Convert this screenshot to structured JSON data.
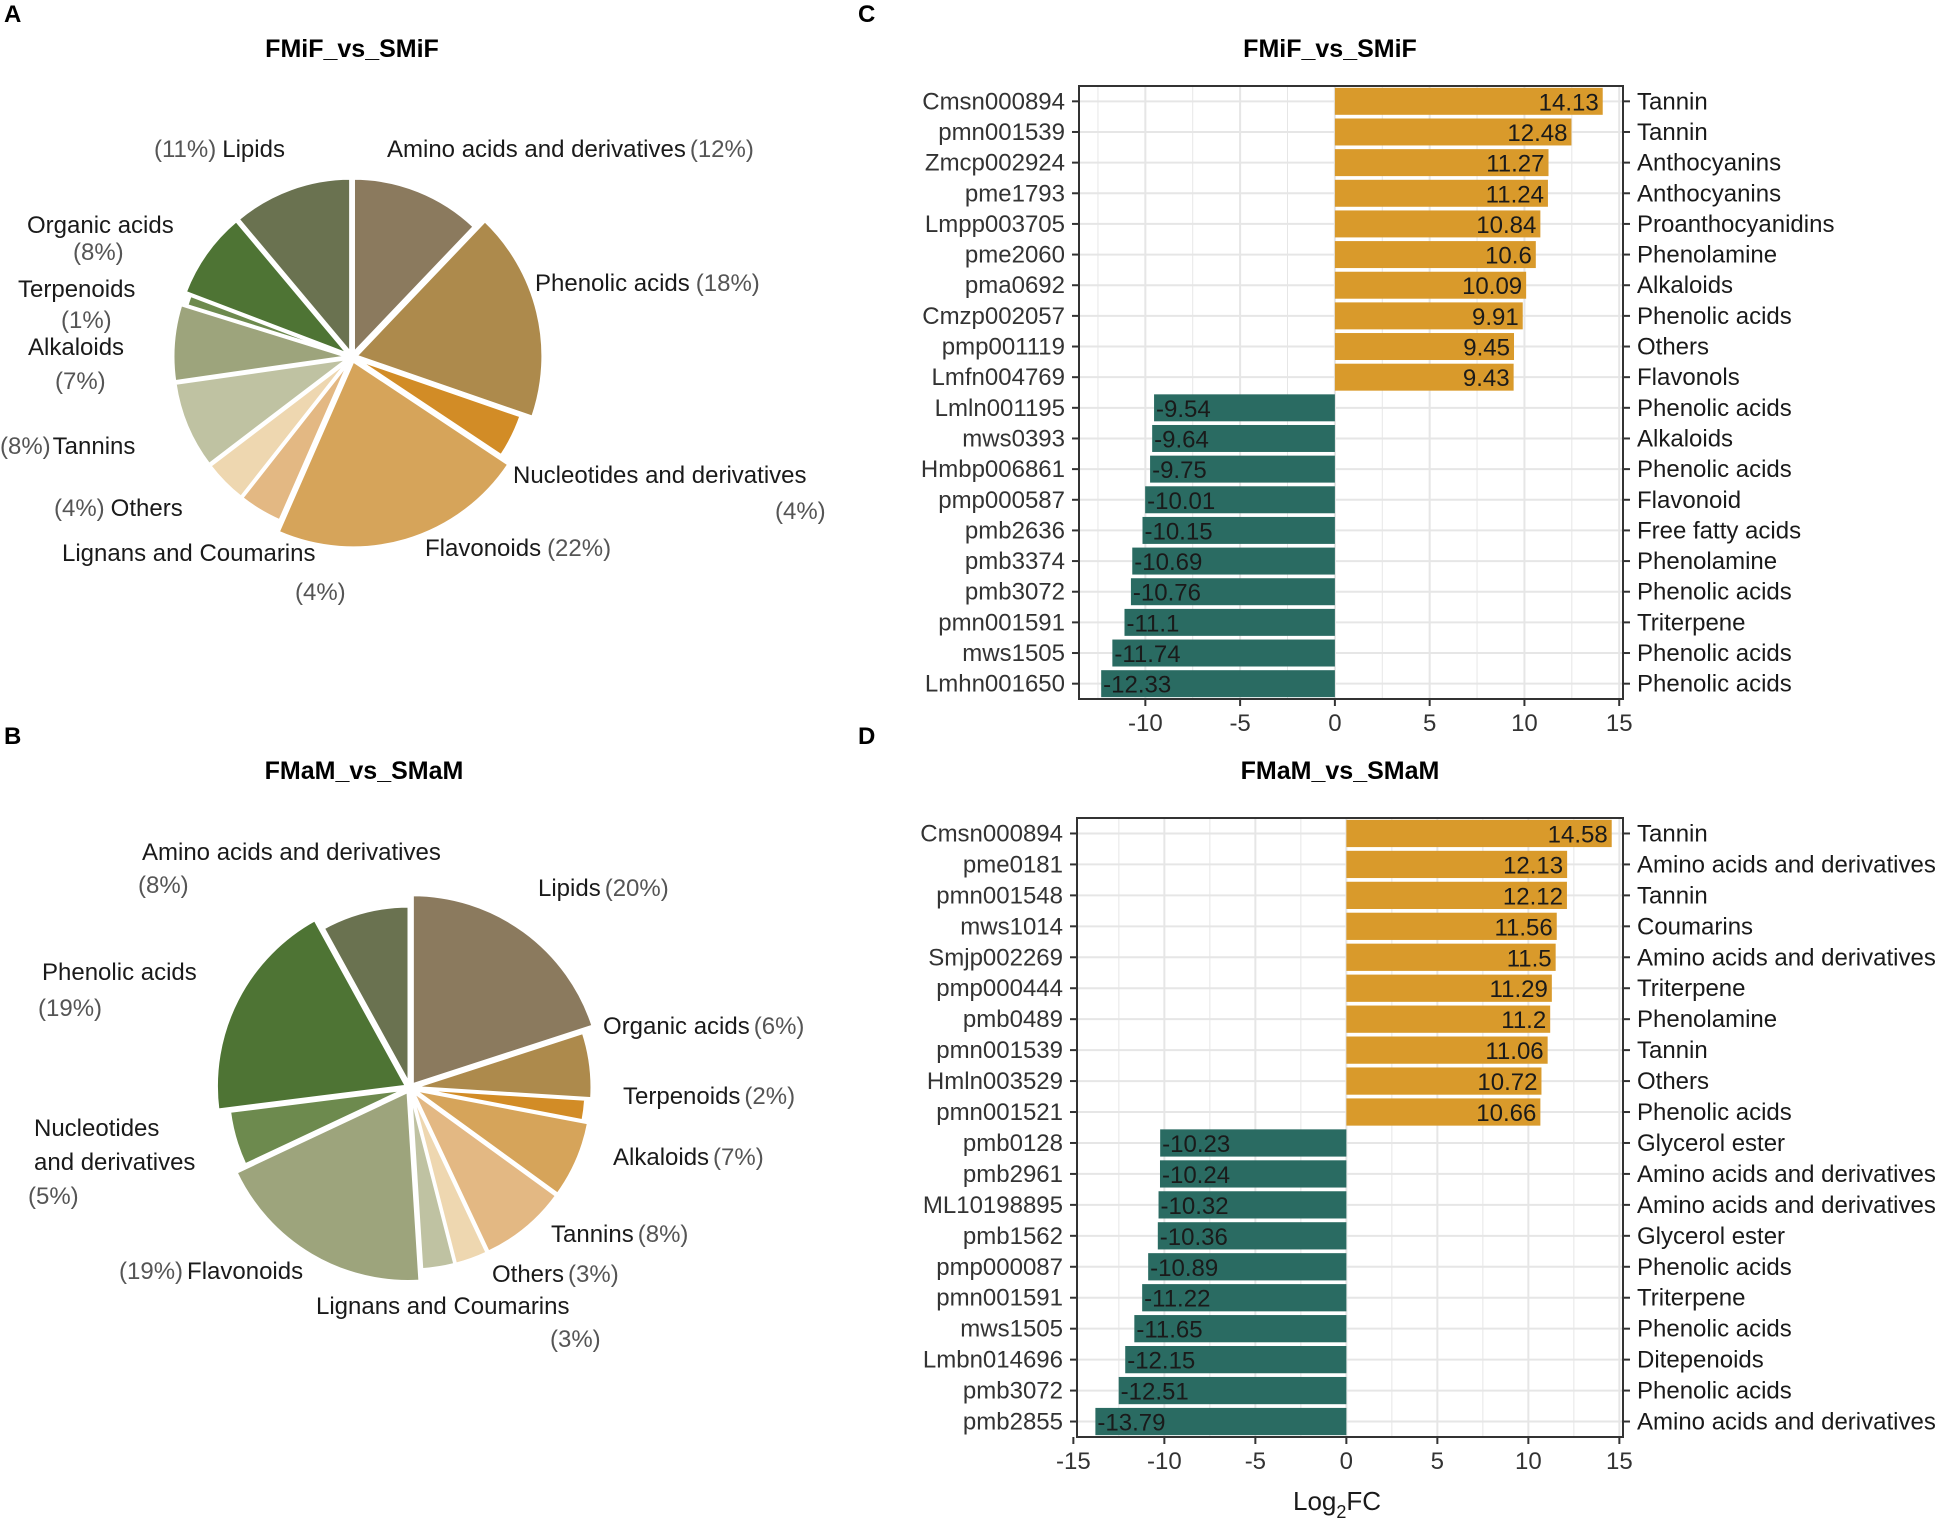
{
  "colors": {
    "up": "#D99A2B",
    "down": "#2A6B62",
    "grid": "#e6e6e6",
    "frame": "#333333"
  },
  "chart_data": [
    {
      "panel": "A",
      "type": "pie",
      "title": "FMiF_vs_SMiF",
      "slices": [
        {
          "name": "Amino acids and derivatives",
          "percent": 12,
          "label": "Amino acids and derivatives",
          "pct_label": "(12%)",
          "color": "#8B7A5E"
        },
        {
          "name": "Phenolic acids",
          "percent": 18,
          "label": "Phenolic acids",
          "pct_label": "(18%)",
          "color": "#AD8A4C"
        },
        {
          "name": "Nucleotides and derivatives",
          "percent": 4,
          "label": "Nucleotides and derivatives",
          "pct_label": "(4%)",
          "color": "#D28C26"
        },
        {
          "name": "Flavonoids",
          "percent": 22,
          "label": "Flavonoids",
          "pct_label": "(22%)",
          "color": "#D6A45A"
        },
        {
          "name": "Lignans and Coumarins",
          "percent": 4,
          "label": "Lignans and Coumarins",
          "pct_label": "(4%)",
          "color": "#E3B883"
        },
        {
          "name": "Others",
          "percent": 4,
          "label": "Others",
          "pct_label": "(4%)",
          "color": "#EED7B0"
        },
        {
          "name": "Tannins",
          "percent": 8,
          "label": "Tannins",
          "pct_label": "(8%)",
          "color": "#BFC2A2"
        },
        {
          "name": "Alkaloids",
          "percent": 7,
          "label": "Alkaloids",
          "pct_label": "(7%)",
          "color": "#9DA47C"
        },
        {
          "name": "Terpenoids",
          "percent": 1,
          "label": "Terpenoids",
          "pct_label": "(1%)",
          "color": "#6D8A4E"
        },
        {
          "name": "Organic acids",
          "percent": 8,
          "label": "Organic acids",
          "pct_label": "(8%)",
          "color": "#4E7434"
        },
        {
          "name": "Lipids",
          "percent": 11,
          "label": "Lipids",
          "pct_label": "(11%)",
          "color": "#6A7250"
        }
      ]
    },
    {
      "panel": "B",
      "type": "pie",
      "title": "FMaM_vs_SMaM",
      "slices": [
        {
          "name": "Lipids",
          "percent": 20,
          "label": "Lipids",
          "pct_label": "(20%)",
          "color": "#8B7A5E"
        },
        {
          "name": "Organic acids",
          "percent": 6,
          "label": "Organic acids",
          "pct_label": "(6%)",
          "color": "#AD8A4C"
        },
        {
          "name": "Terpenoids",
          "percent": 2,
          "label": "Terpenoids",
          "pct_label": "(2%)",
          "color": "#D28C26"
        },
        {
          "name": "Alkaloids",
          "percent": 7,
          "label": "Alkaloids",
          "pct_label": "(7%)",
          "color": "#D6A45A"
        },
        {
          "name": "Tannins",
          "percent": 8,
          "label": "Tannins",
          "pct_label": "(8%)",
          "color": "#E3B883"
        },
        {
          "name": "Others",
          "percent": 3,
          "label": "Others",
          "pct_label": "(3%)",
          "color": "#EED7B0"
        },
        {
          "name": "Lignans and Coumarins",
          "percent": 3,
          "label": "Lignans and Coumarins",
          "pct_label": "(3%)",
          "color": "#BFC2A2"
        },
        {
          "name": "Flavonoids",
          "percent": 19,
          "label": "Flavonoids",
          "pct_label": "(19%)",
          "color": "#9DA47C"
        },
        {
          "name": "Nucleotides and derivatives",
          "percent": 5,
          "label": "Nucleotides and derivatives",
          "pct_label": "(5%)",
          "color": "#6D8A4E"
        },
        {
          "name": "Phenolic acids",
          "percent": 19,
          "label": "Phenolic acids",
          "pct_label": "(19%)",
          "color": "#4E7434"
        },
        {
          "name": "Amino acids and derivatives",
          "percent": 8,
          "label": "Amino acids and derivatives",
          "pct_label": "(8%)",
          "color": "#6A7250"
        }
      ]
    },
    {
      "panel": "C",
      "type": "bar",
      "orientation": "horizontal",
      "title": "FMiF_vs_SMiF",
      "xlabel": "",
      "xlim": [
        -13.5,
        15.2
      ],
      "xticks": [
        -10,
        -5,
        0,
        5,
        10,
        15
      ],
      "categories": [
        "Cmsn000894",
        "pmn001539",
        "Zmcp002924",
        "pme1793",
        "Lmpp003705",
        "pme2060",
        "pma0692",
        "Cmzp002057",
        "pmp001119",
        "Lmfn004769",
        "Lmln001195",
        "mws0393",
        "Hmbp006861",
        "pmp000587",
        "pmb2636",
        "pmb3374",
        "pmb3072",
        "pmn001591",
        "mws1505",
        "Lmhn001650"
      ],
      "values": [
        14.13,
        12.48,
        11.27,
        11.24,
        10.84,
        10.6,
        10.09,
        9.91,
        9.45,
        9.43,
        -9.54,
        -9.64,
        -9.75,
        -10.01,
        -10.15,
        -10.69,
        -10.76,
        -11.1,
        -11.74,
        -12.33
      ],
      "value_labels": [
        "14.13",
        "12.48",
        "11.27",
        "11.24",
        "10.84",
        "10.6",
        "10.09",
        "9.91",
        "9.45",
        "9.43",
        "-9.54",
        "-9.64",
        "-9.75",
        "-10.01",
        "-10.15",
        "-10.69",
        "-10.76",
        "-11.1",
        "-11.74",
        "-12.33"
      ],
      "classes": [
        "Tannin",
        "Tannin",
        "Anthocyanins",
        "Anthocyanins",
        "Proanthocyanidins",
        "Phenolamine",
        "Alkaloids",
        "Phenolic acids",
        "Others",
        "Flavonols",
        "Phenolic acids",
        "Alkaloids",
        "Phenolic acids",
        "Flavonoid",
        "Free fatty acids",
        "Phenolamine",
        "Phenolic acids",
        "Triterpene",
        "Phenolic acids",
        "Phenolic acids"
      ]
    },
    {
      "panel": "D",
      "type": "bar",
      "orientation": "horizontal",
      "title": "FMaM_vs_SMaM",
      "xlabel": "Log",
      "xlabel_sub": "2",
      "xlabel_suffix": "FC",
      "xlim": [
        -14.8,
        15.2
      ],
      "xticks": [
        -15,
        -10,
        -5,
        0,
        5,
        10,
        15
      ],
      "categories": [
        "Cmsn000894",
        "pme0181",
        "pmn001548",
        "mws1014",
        "Smjp002269",
        "pmp000444",
        "pmb0489",
        "pmn001539",
        "Hmln003529",
        "pmn001521",
        "pmb0128",
        "pmb2961",
        "ML10198895",
        "pmb1562",
        "pmp000087",
        "pmn001591",
        "mws1505",
        "Lmbn014696",
        "pmb3072",
        "pmb2855"
      ],
      "values": [
        14.58,
        12.13,
        12.12,
        11.56,
        11.5,
        11.29,
        11.2,
        11.06,
        10.72,
        10.66,
        -10.23,
        -10.24,
        -10.32,
        -10.36,
        -10.89,
        -11.22,
        -11.65,
        -12.15,
        -12.51,
        -13.79
      ],
      "value_labels": [
        "14.58",
        "12.13",
        "12.12",
        "11.56",
        "11.5",
        "11.29",
        "11.2",
        "11.06",
        "10.72",
        "10.66",
        "-10.23",
        "-10.24",
        "-10.32",
        "-10.36",
        "-10.89",
        "-11.22",
        "-11.65",
        "-12.15",
        "-12.51",
        "-13.79"
      ],
      "classes": [
        "Tannin",
        "Amino acids and derivatives",
        "Tannin",
        "Coumarins",
        "Amino acids and derivatives",
        "Triterpene",
        "Phenolamine",
        "Tannin",
        "Others",
        "Phenolic acids",
        "Glycerol ester",
        "Amino acids and derivatives",
        "Amino acids and derivatives",
        "Glycerol ester",
        "Phenolic acids",
        "Triterpene",
        "Phenolic acids",
        "Ditepenoids",
        "Phenolic acids",
        "Amino acids and derivatives"
      ]
    }
  ]
}
